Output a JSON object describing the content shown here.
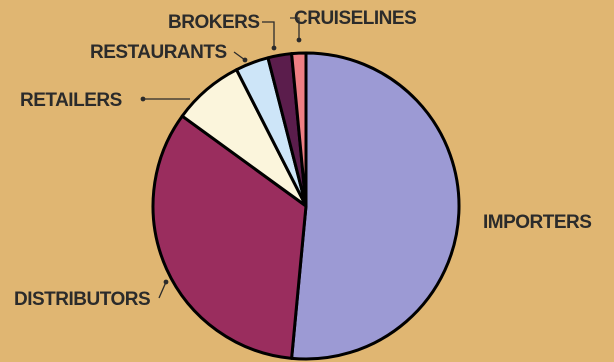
{
  "chart_data": {
    "type": "pie",
    "title": "",
    "categories": [
      "IMPORTERS",
      "DISTRIBUTORS",
      "RETAILERS",
      "RESTAURANTS",
      "BROKERS",
      "CRUISELINES"
    ],
    "values": [
      51.5,
      33.5,
      7.5,
      3.5,
      2.5,
      1.5
    ],
    "unit": "%",
    "colors": [
      "#9c9ad4",
      "#9a2d5e",
      "#fbf5dc",
      "#cde5f8",
      "#5b1d4c",
      "#ee7f84"
    ],
    "start_angle_deg": 0,
    "direction": "clockwise",
    "legend": "none (direct labels with leader lines)",
    "background": "#e0b672"
  }
}
